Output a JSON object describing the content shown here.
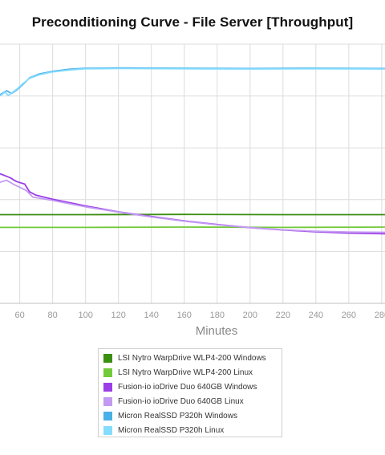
{
  "chart_data": {
    "type": "line",
    "title": "Preconditioning Curve - File Server [Throughput]",
    "xlabel": "Minutes",
    "ylabel": "",
    "xlim": [
      48,
      282
    ],
    "ylim": [
      0,
      1000
    ],
    "x_ticks": [
      60,
      80,
      100,
      120,
      140,
      160,
      180,
      200,
      220,
      240,
      260,
      280
    ],
    "grid": true,
    "legend_position": "bottom",
    "series": [
      {
        "name": "LSI Nytro WarpDrive WLP4-200 Windows",
        "color": "#3a8f10",
        "x": [
          48,
          100,
          160,
          220,
          282
        ],
        "y": [
          342,
          342,
          343,
          342,
          342
        ]
      },
      {
        "name": "LSI Nytro WarpDrive WLP4-200 Linux",
        "color": "#72c93a",
        "x": [
          48,
          100,
          160,
          220,
          282
        ],
        "y": [
          293,
          293,
          294,
          293,
          294
        ]
      },
      {
        "name": "Fusion-io ioDrive Duo 640GB Windows",
        "color": "#9b3ee8",
        "x": [
          48,
          54,
          58,
          63,
          66,
          70,
          80,
          100,
          120,
          140,
          160,
          180,
          200,
          220,
          240,
          260,
          282
        ],
        "y": [
          500,
          485,
          470,
          460,
          430,
          417,
          402,
          376,
          353,
          335,
          318,
          304,
          292,
          283,
          276,
          271,
          268
        ]
      },
      {
        "name": "Fusion-io ioDrive Duo 640GB Linux",
        "color": "#c39af2",
        "x": [
          48,
          52,
          56,
          60,
          64,
          68,
          80,
          100,
          120,
          140,
          160,
          180,
          200,
          220,
          240,
          260,
          282
        ],
        "y": [
          467,
          475,
          460,
          448,
          435,
          410,
          397,
          372,
          352,
          333,
          317,
          303,
          292,
          284,
          278,
          275,
          274
        ]
      },
      {
        "name": "Micron RealSSD P320h Windows",
        "color": "#4ab0e8",
        "x": [
          48,
          52,
          55,
          58,
          62,
          66,
          72,
          80,
          90,
          100,
          120,
          160,
          200,
          240,
          282
        ],
        "y": [
          805,
          820,
          810,
          822,
          845,
          870,
          885,
          895,
          903,
          907,
          908,
          907,
          906,
          907,
          906
        ]
      },
      {
        "name": "Micron RealSSD P320h Linux",
        "color": "#84dcff",
        "x": [
          48,
          51,
          53,
          55,
          58,
          62,
          66,
          72,
          80,
          90,
          100,
          120,
          160,
          200,
          240,
          282
        ],
        "y": [
          800,
          815,
          802,
          812,
          825,
          848,
          868,
          882,
          893,
          900,
          905,
          906,
          905,
          904,
          905,
          904
        ]
      }
    ]
  }
}
